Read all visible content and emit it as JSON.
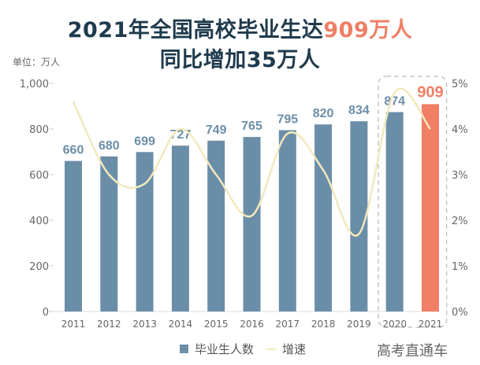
{
  "title": {
    "line1_prefix": "2021年全国高校毕业生达",
    "line1_highlight": "909万人",
    "line2": "同比增加35万人"
  },
  "unit_label": "单位：万人",
  "watermark": "高考直通车",
  "colors": {
    "bar": "#6b8ea8",
    "highlight_bar": "#f07f66",
    "line": "#f2e8bd",
    "title": "#1f3b4d"
  },
  "chart_data": {
    "type": "bar+line",
    "categories": [
      "2011",
      "2012",
      "2013",
      "2014",
      "2015",
      "2016",
      "2017",
      "2018",
      "2019",
      "2020",
      "2021"
    ],
    "series": [
      {
        "name": "毕业生人数",
        "type": "bar",
        "axis": "left",
        "values": [
          660,
          680,
          699,
          727,
          749,
          765,
          795,
          820,
          834,
          874,
          909
        ]
      },
      {
        "name": "增速",
        "type": "line",
        "axis": "right",
        "values": [
          4.6,
          3.0,
          2.8,
          4.0,
          3.0,
          2.1,
          3.9,
          3.1,
          1.7,
          4.8,
          4.0
        ]
      }
    ],
    "left_axis": {
      "ylim": [
        0,
        1000
      ],
      "ticks": [
        "0",
        "200",
        "400",
        "600",
        "800",
        "1,000"
      ]
    },
    "right_axis": {
      "ylim": [
        0,
        5
      ],
      "ticks": [
        "0%",
        "1%",
        "2%",
        "3%",
        "4%",
        "5%"
      ]
    },
    "highlighted_categories": [
      "2020",
      "2021"
    ],
    "legend_position": "bottom",
    "grid": false
  }
}
